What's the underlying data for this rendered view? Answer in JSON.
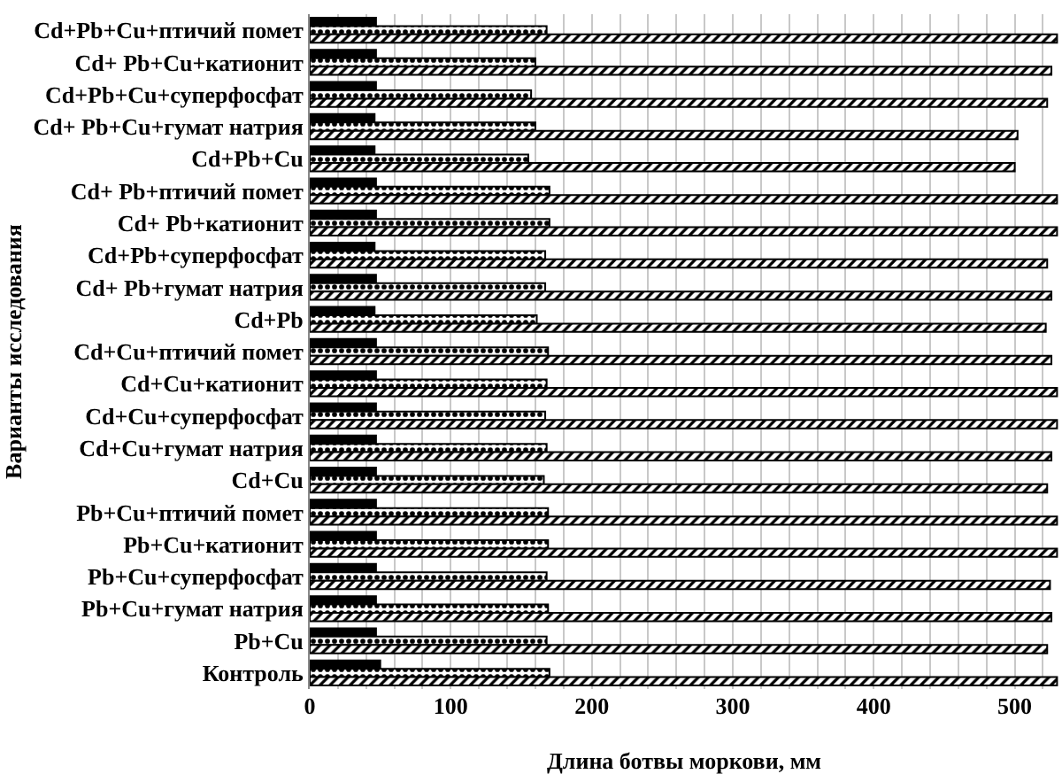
{
  "chart_data": {
    "type": "bar",
    "orientation": "horizontal",
    "xlabel": "Длина ботвы моркови, мм",
    "ylabel": "Варианты исследования",
    "categories": [
      "Cd+Pb+Cu+птичий помет",
      "Cd+ Pb+Cu+катионит",
      "Cd+Pb+Cu+суперфосфат",
      "Cd+ Pb+Cu+гумат натрия",
      "Cd+Pb+Cu",
      "Cd+ Pb+птичий помет",
      "Cd+ Pb+катионит",
      "Cd+Pb+суперфосфат",
      "Cd+ Pb+гумат натрия",
      "Cd+Pb",
      "Cd+Cu+птичий помет",
      "Cd+Cu+катионит",
      "Cd+Cu+суперфосфат",
      "Cd+Cu+гумат натрия",
      "Cd+Cu",
      "Pb+Cu+птичий помет",
      "Pb+Cu+катионит",
      "Pb+Cu+суперфосфат",
      "Pb+Cu+гумат натрия",
      "Pb+Cu",
      "Контроль"
    ],
    "series": [
      {
        "color": "#000000",
        "values": [
          530,
          526,
          523,
          502,
          500,
          530,
          530,
          523,
          526,
          522,
          526,
          530,
          530,
          526,
          523,
          530,
          530,
          525,
          526,
          523,
          530
        ]
      },
      {
        "color": "#000000",
        "values": [
          168,
          160,
          157,
          160,
          155,
          170,
          170,
          167,
          167,
          161,
          169,
          168,
          167,
          168,
          166,
          169,
          169,
          168,
          169,
          168,
          170
        ]
      },
      {
        "color": "#000000",
        "values": [
          47,
          47,
          47,
          46,
          46,
          47,
          47,
          46,
          47,
          46,
          47,
          47,
          47,
          47,
          47,
          47,
          47,
          47,
          47,
          47,
          50
        ]
      }
    ],
    "xlim": [
      0,
      531
    ],
    "xticks": [
      0,
      {
        "value": 20,
        "label": null
      },
      {
        "value": 40,
        "label": null
      },
      {
        "value": 60,
        "label": null
      },
      {
        "value": 80,
        "label": null
      },
      100,
      {
        "value": 120,
        "label": null
      },
      {
        "value": 140,
        "label": null
      },
      {
        "value": 160,
        "label": null
      },
      {
        "value": 180,
        "label": null
      },
      200,
      {
        "value": 220,
        "label": null
      },
      {
        "value": 240,
        "label": null
      },
      {
        "value": 260,
        "label": null
      },
      {
        "value": 280,
        "label": null
      },
      300,
      {
        "value": 320,
        "label": null
      },
      {
        "value": 340,
        "label": null
      },
      {
        "value": 360,
        "label": null
      },
      {
        "value": 380,
        "label": null
      },
      400,
      {
        "value": 420,
        "label": null
      },
      {
        "value": 440,
        "label": null
      },
      {
        "value": 460,
        "label": null
      },
      {
        "value": 480,
        "label": null
      },
      500,
      {
        "value": 520,
        "label": null
      }
    ],
    "grid": "x"
  }
}
